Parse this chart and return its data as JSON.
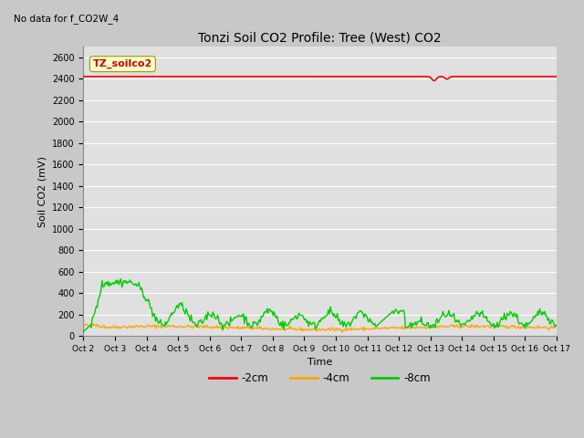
{
  "title": "Tonzi Soil CO2 Profile: Tree (West) CO2",
  "no_data_text": "No data for f_CO2W_4",
  "ylabel": "Soil CO2 (mV)",
  "xlabel": "Time",
  "legend_box_label": "TZ_soilco2",
  "ylim": [
    0,
    2700
  ],
  "yticks": [
    0,
    200,
    400,
    600,
    800,
    1000,
    1200,
    1400,
    1600,
    1800,
    2000,
    2200,
    2400,
    2600
  ],
  "fig_bg_color": "#c8c8c8",
  "plot_bg_color": "#e0e0e0",
  "line_colors": {
    "neg2cm": "#ff0000",
    "neg4cm": "#ffa500",
    "neg8cm": "#00cc00"
  },
  "legend_labels": [
    "-2cm",
    "-4cm",
    "-8cm"
  ],
  "x_tick_labels": [
    "Oct 2",
    "Oct 3",
    "Oct 4",
    "Oct 5",
    "Oct 6",
    "Oct 7",
    "Oct 8",
    "Oct 9",
    "Oct 10",
    "Oct 11",
    "Oct 12",
    "Oct 13",
    "Oct 14",
    "Oct 15",
    "Oct 16",
    "Oct 17"
  ],
  "num_points": 480
}
